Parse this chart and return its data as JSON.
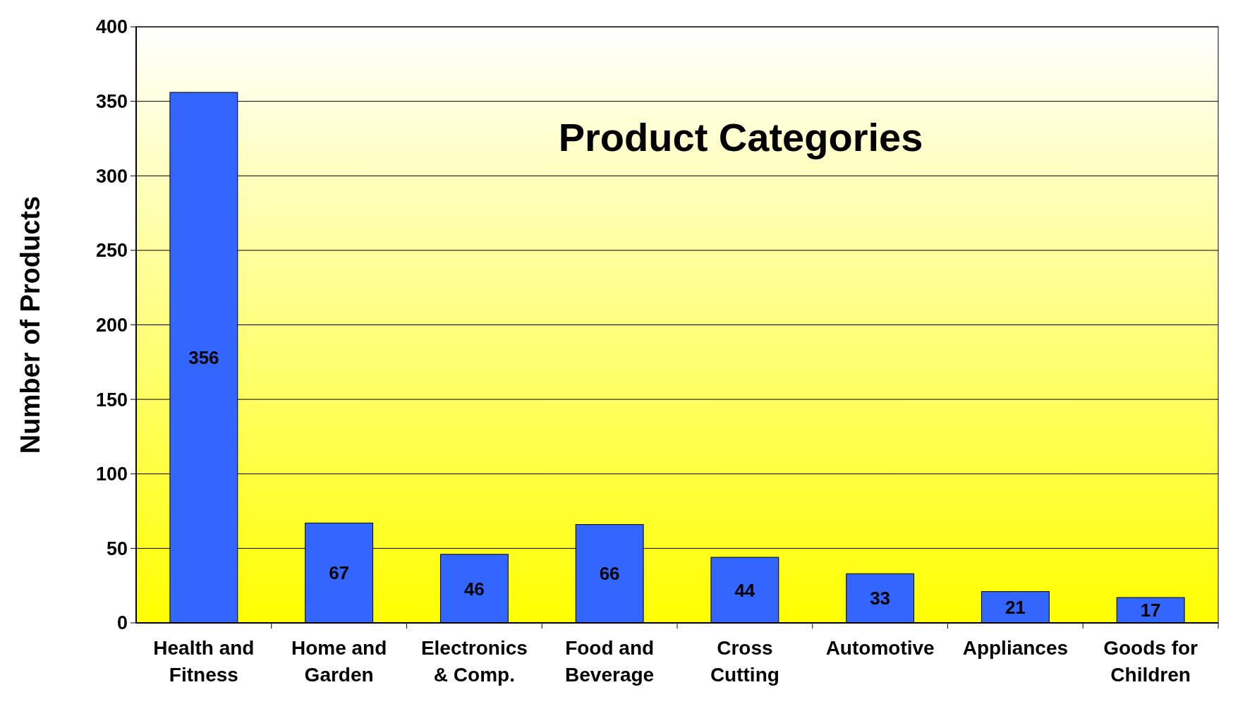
{
  "chart_data": {
    "type": "bar",
    "title": "Product Categories",
    "ylabel": "Number of Products",
    "categories": [
      "Health and Fitness",
      "Home and Garden",
      "Electronics & Comp.",
      "Food and Beverage",
      "Cross Cutting",
      "Automotive",
      "Appliances",
      "Goods for Children"
    ],
    "values": [
      356,
      67,
      46,
      66,
      44,
      33,
      21,
      17
    ],
    "color": "#3366ff",
    "ylim": [
      0,
      400
    ],
    "yticks": [
      0,
      50,
      100,
      150,
      200,
      250,
      300,
      350,
      400
    ],
    "grid": "y",
    "data_labels": true
  }
}
